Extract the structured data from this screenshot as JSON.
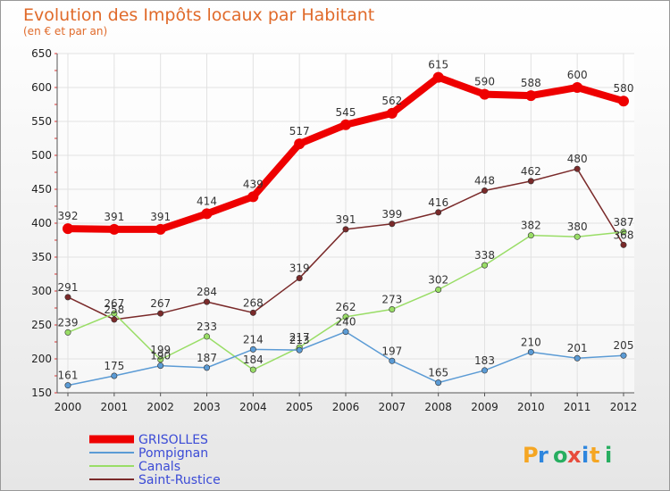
{
  "chart_data": {
    "type": "line",
    "title": "Evolution des Impôts locaux par Habitant",
    "subtitle": "(en € et par an)",
    "logo_text": "Proxiti",
    "x": [
      "2000",
      "2001",
      "2002",
      "2003",
      "2004",
      "2005",
      "2006",
      "2007",
      "2008",
      "2009",
      "2010",
      "2011",
      "2012"
    ],
    "ylim": [
      150,
      650
    ],
    "yticks": [
      150,
      200,
      250,
      300,
      350,
      400,
      450,
      500,
      550,
      600,
      650
    ],
    "grid": true,
    "legend_position": "bottom-left",
    "series": [
      {
        "name": "GRISOLLES",
        "color": "#ee0000",
        "values": [
          392,
          391,
          391,
          414,
          439,
          517,
          545,
          562,
          615,
          590,
          588,
          600,
          580
        ]
      },
      {
        "name": "Pompignan",
        "color": "#5b9bd5",
        "values": [
          161,
          175,
          190,
          187,
          214,
          213,
          240,
          197,
          165,
          183,
          210,
          201,
          205
        ]
      },
      {
        "name": "Canals",
        "color": "#99dd66",
        "values": [
          239,
          267,
          199,
          233,
          184,
          217,
          262,
          273,
          302,
          338,
          382,
          380,
          387
        ]
      },
      {
        "name": "Saint-Rustice",
        "color": "#7a2a2a",
        "values": [
          291,
          258,
          267,
          284,
          268,
          319,
          391,
          399,
          416,
          448,
          462,
          480,
          368
        ]
      }
    ]
  }
}
